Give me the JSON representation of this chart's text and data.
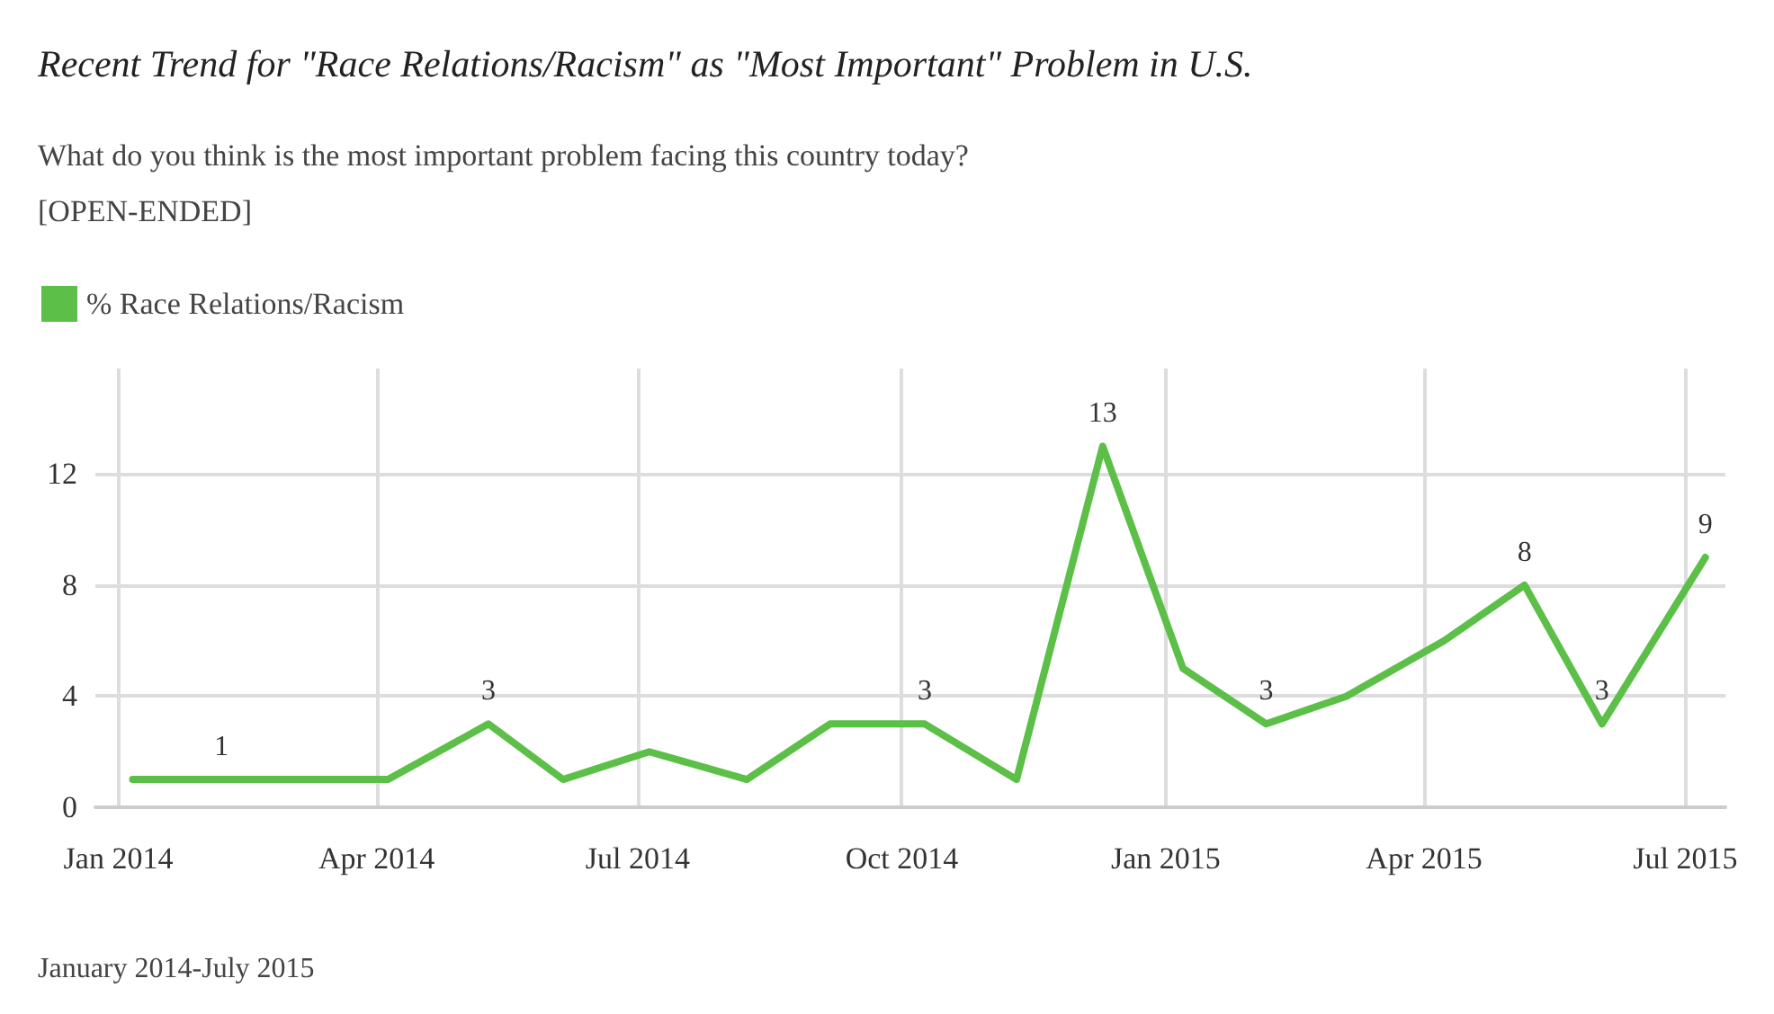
{
  "chart_data": {
    "type": "line",
    "title": "Recent Trend for \"Race Relations/Racism\" as \"Most Important\" Problem in U.S.",
    "subtitle": "What do you think is the most important problem facing this country today?\n[OPEN-ENDED]",
    "x": [
      "2014-01-06",
      "2014-02-06",
      "2014-03-06",
      "2014-04-05",
      "2014-05-10",
      "2014-06-05",
      "2014-07-05",
      "2014-08-08",
      "2014-09-06",
      "2014-10-09",
      "2014-11-10",
      "2014-12-10",
      "2015-01-07",
      "2015-02-05",
      "2015-03-05",
      "2015-04-08",
      "2015-05-06",
      "2015-06-02",
      "2015-07-08"
    ],
    "series": [
      {
        "name": "% Race Relations/Racism",
        "color": "#5cbf48",
        "values": [
          1,
          1,
          1,
          1,
          3,
          1,
          2,
          1,
          3,
          3,
          1,
          13,
          5,
          3,
          4,
          6,
          8,
          3,
          9
        ],
        "value_labels": [
          null,
          "1",
          null,
          null,
          "3",
          null,
          null,
          null,
          null,
          "3",
          null,
          "13",
          null,
          "3",
          null,
          null,
          "8",
          "3",
          "9"
        ]
      }
    ],
    "xlim": [
      "2013-12-24",
      "2015-07-15"
    ],
    "xticks": [
      {
        "value": "2014-01-01",
        "label": "Jan 2014"
      },
      {
        "value": "2014-04-01",
        "label": "Apr 2014"
      },
      {
        "value": "2014-07-01",
        "label": "Jul 2014"
      },
      {
        "value": "2014-10-01",
        "label": "Oct 2014"
      },
      {
        "value": "2015-01-01",
        "label": "Jan 2015"
      },
      {
        "value": "2015-04-01",
        "label": "Apr 2015"
      },
      {
        "value": "2015-07-01",
        "label": "Jul 2015"
      }
    ],
    "ylim": [
      0,
      15.8
    ],
    "yticks": [
      0,
      4,
      8,
      12
    ],
    "grid": true,
    "legend": "top left",
    "marker": "none",
    "line_style": "solid",
    "annotations": [
      "January 2014-July 2015"
    ]
  }
}
